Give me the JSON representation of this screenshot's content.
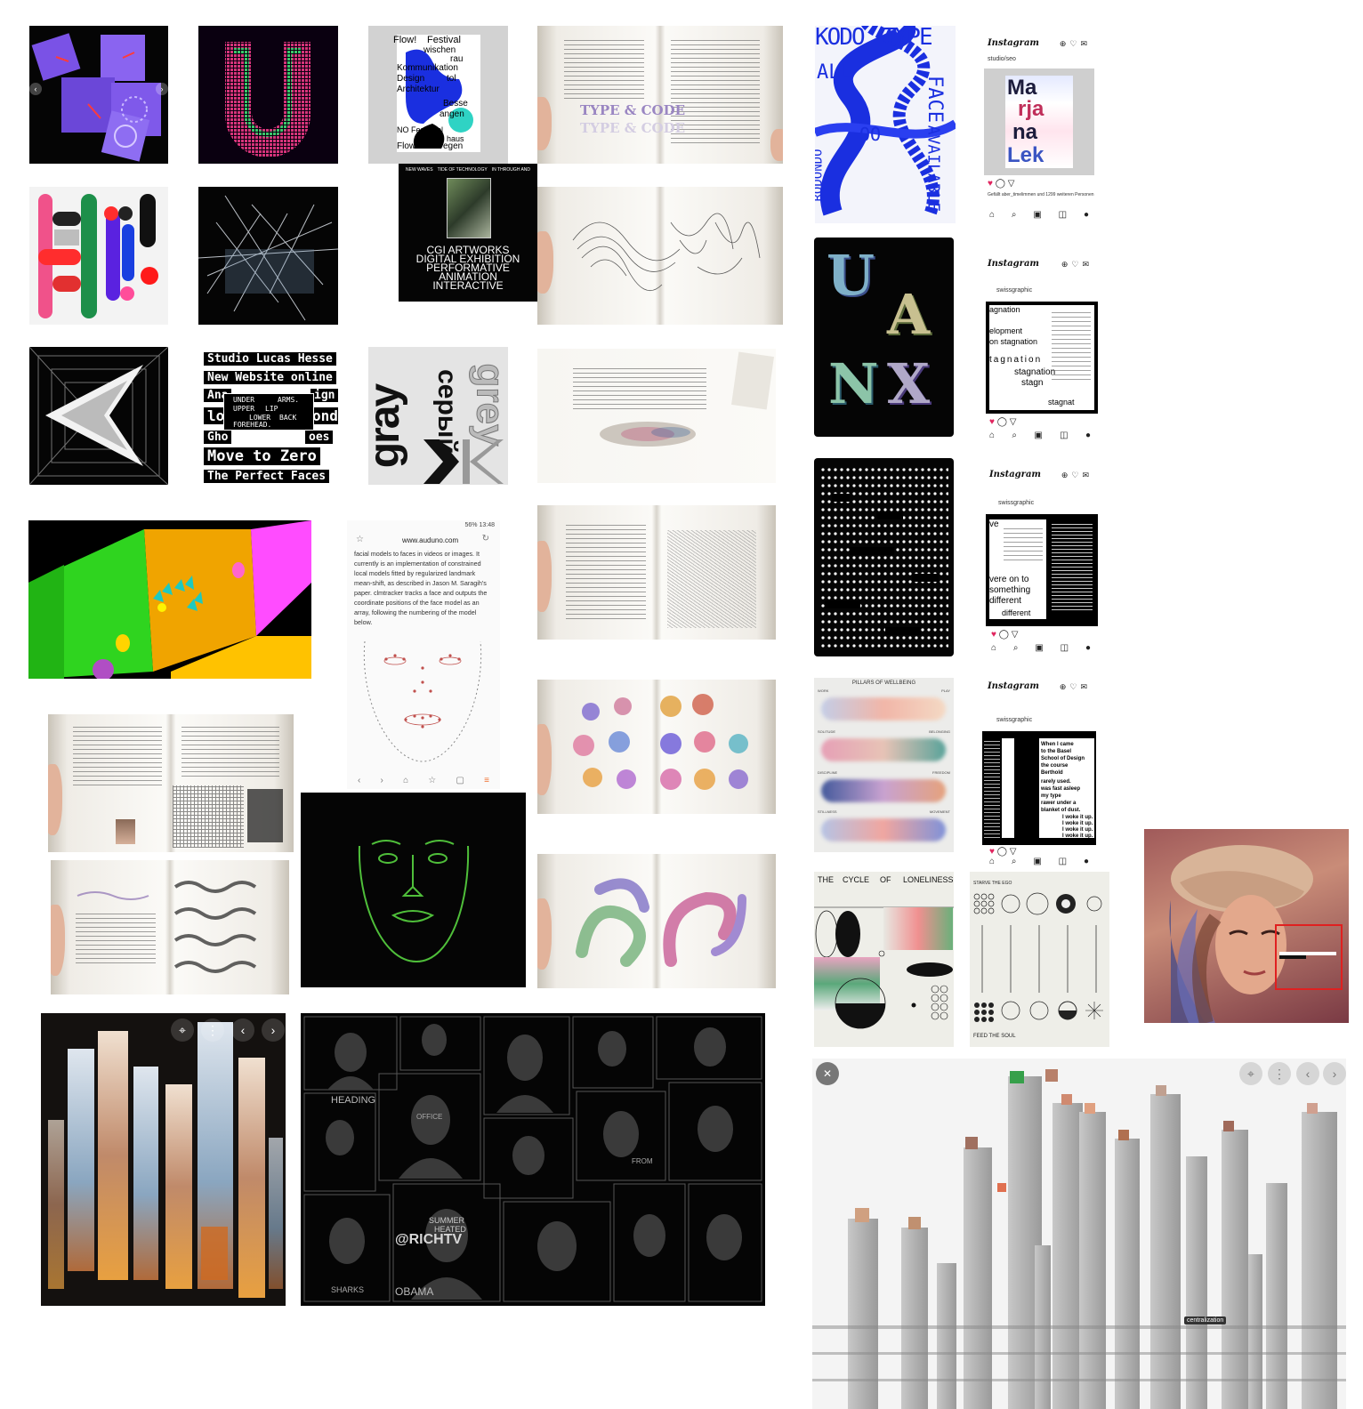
{
  "board": {
    "title": ""
  },
  "studio_tile": {
    "lines": [
      "Studio Lucas Hesse",
      "New Website online",
      "Ana",
      "ign",
      "lon",
      "ond",
      "Gho",
      "oes",
      "Move to Zero",
      "The Perfect Faces"
    ],
    "overlay": [
      "UNDER",
      "ARMS.",
      "UPPER",
      "LIP",
      "LOWER",
      "BACK",
      "FOREHEAD."
    ]
  },
  "cgi_poster": {
    "nav": [
      "NEW WAVES",
      "TIDE OF TECHNOLOGY",
      "IN THROUGH AND"
    ],
    "lines": [
      "CGI ARTWORKS",
      "DIGITAL EXHIBITION",
      "PERFORMATIVE",
      "ANIMATION",
      "INTERACTIVE"
    ]
  },
  "festival_poster": {
    "words": [
      "Flow!",
      "Festival",
      "wischen",
      "rau",
      "Kommunikation",
      "Design",
      "tol",
      "Architektur",
      "Besse",
      "angen",
      "NO Festspiel",
      "haus",
      "Flow!",
      "Bregen"
    ]
  },
  "book_type_code": {
    "text": "TYPE & CODE"
  },
  "gray_poster": {
    "words": [
      "gray",
      "серый",
      "grey",
      "gray"
    ]
  },
  "phone_article": {
    "status": "56% 13:48",
    "url": "www.auduno.com",
    "body": "facial models to faces in videos or images. It currently is an implementation of constrained local models fitted by regularized landmark mean-shift, as described in Jason M. Saragih's paper. clmtracker tracks a face and outputs the coordinate positions of the face model as an array, following the numbering of the model below."
  },
  "type_poster": {
    "words": [
      "KODO",
      "TYPE",
      "FACE",
      "AVAILABLE",
      "RODONDO",
      "ALL",
      "OO"
    ]
  },
  "bubble_letters": {
    "words": [
      "U",
      "A",
      "N",
      "X"
    ]
  },
  "instagram_posts": [
    {
      "logo": "Instagram",
      "account": "studio/seo",
      "poster_words": [
        "Ma",
        "rja",
        "na",
        "Lek"
      ],
      "likes": "Gefällt aber_timelimmen und 1299 weiteren Personen"
    },
    {
      "logo": "Instagram",
      "account": "swissgraphic",
      "poster_words": [
        "agnation",
        "elopment",
        "on stagnation",
        "tagnation",
        "stagnation",
        "stagn",
        "stagnat"
      ]
    },
    {
      "logo": "Instagram",
      "account": "swissgraphic",
      "poster_words": [
        "ve",
        "vere on to",
        "something",
        "different",
        "different"
      ]
    },
    {
      "logo": "Instagram",
      "account": "swissgraphic",
      "poster_words": [
        "When I came",
        "to the Basel",
        "School of Design",
        "the course",
        "Berthold",
        "rarely used.",
        "was fast asleep",
        "my type",
        "rawer under a",
        "blanket of dust.",
        "I woke it up.",
        "I woke it up.",
        "I woke it up.",
        "I woke it up."
      ]
    }
  ],
  "pillars_poster": {
    "title": "PILLARS OF WELLBEING",
    "labels": [
      "WORK",
      "PLAY",
      "SOLITUDE",
      "BELONGING",
      "DISCIPLINE",
      "FREEDOM",
      "STILLNESS",
      "MOVEMENT"
    ]
  },
  "cycle_poster": {
    "title": [
      "THE",
      "CYCLE",
      "OF",
      "LONELINESS"
    ]
  },
  "soul_poster": {
    "title": "STARVE THE EGO",
    "footer": "FEED THE SOUL"
  },
  "face_wall": {
    "words": [
      "HEADING",
      "OFFICE",
      "SUMMER",
      "HEATED",
      "@RICHTV",
      "OBAMA",
      "SHARKS",
      "FROM"
    ]
  },
  "city_viz": {
    "label": "centralization",
    "close": "✕"
  },
  "controls": {
    "screenshot": "⌖",
    "more": "⋮",
    "prev": "‹",
    "next": "›"
  },
  "colors": {
    "accent_blue": "#1a2fe0",
    "accent_purple": "#6a3fd6",
    "face_green": "#4fbf3a",
    "background": "#ffffff"
  }
}
